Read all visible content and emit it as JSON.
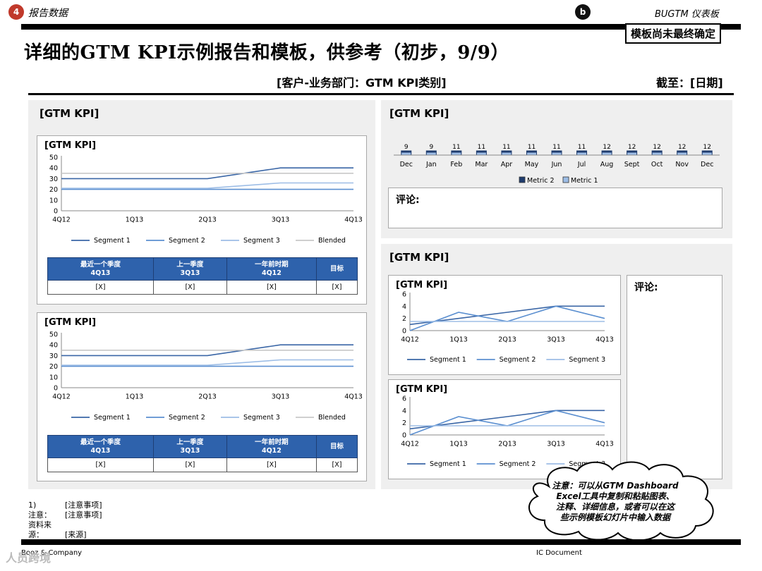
{
  "header": {
    "section_number": "4",
    "section_name": "报告数据",
    "b_badge": "b",
    "dashboard_name": "BUGTM 仪表板",
    "stamp": "模板尚未最终确定",
    "title": "详细的GTM KPI示例报告和模板，供参考（初步，9/9）",
    "subheading": "[客户-业务部门：GTM KPI类别]",
    "as_of": "截至：[日期]"
  },
  "left_panel": {
    "title": "[GTM KPI]",
    "cards": [
      {
        "title": "[GTM KPI]",
        "table_headers": [
          {
            "label": "最近一个季度",
            "sub": "4Q13"
          },
          {
            "label": "上一季度",
            "sub": "3Q13"
          },
          {
            "label": "一年前时期",
            "sub": "4Q12"
          },
          {
            "label": "目标",
            "sub": ""
          }
        ],
        "table_values": [
          "[X]",
          "[X]",
          "[X]",
          "[X]"
        ]
      },
      {
        "title": "[GTM KPI]",
        "table_headers": [
          {
            "label": "最近一个季度",
            "sub": "4Q13"
          },
          {
            "label": "上一季度",
            "sub": "3Q13"
          },
          {
            "label": "一年前时期",
            "sub": "4Q12"
          },
          {
            "label": "目标",
            "sub": ""
          }
        ],
        "table_values": [
          "[X]",
          "[X]",
          "[X]",
          "[X]"
        ]
      }
    ]
  },
  "right_top_panel": {
    "title": "[GTM KPI]",
    "comment_label": "评论:"
  },
  "right_bottom_panel": {
    "title": "[GTM KPI]",
    "card_titles": [
      "[GTM KPI]",
      "[GTM KPI]"
    ],
    "comment_label": "评论:"
  },
  "callout": {
    "lines": [
      "注意：可以从GTM Dashboard",
      "Excel工具中复制和粘贴图表、",
      "注释、详细信息，或者可以在这",
      "些示例模板幻灯片中输入数据"
    ]
  },
  "footnotes": [
    {
      "key": "1)",
      "value": "[注意事项]"
    },
    {
      "key": "注意：",
      "value": "[注意事项]"
    },
    {
      "key": "资料来源：",
      "value": "[来源]"
    }
  ],
  "footer": {
    "firm": "Booz & Company",
    "doc": "IC Document",
    "watermark": "人员跨境"
  },
  "chart_data": [
    {
      "type": "line",
      "title": "[GTM KPI]",
      "categories": [
        "4Q12",
        "1Q13",
        "2Q13",
        "3Q13",
        "4Q13"
      ],
      "ylim": [
        0,
        50
      ],
      "yticks": [
        0,
        10,
        20,
        30,
        40,
        50
      ],
      "series": [
        {
          "name": "Segment 1",
          "color": "#3a66a6",
          "values": [
            30,
            30,
            30,
            40,
            40
          ]
        },
        {
          "name": "Segment 2",
          "color": "#5b8fd0",
          "values": [
            20,
            20,
            20,
            20,
            20
          ]
        },
        {
          "name": "Segment 3",
          "color": "#9dbde6",
          "values": [
            21,
            21,
            21,
            26,
            26
          ]
        },
        {
          "name": "Blended",
          "color": "#c8c8c8",
          "values": [
            35,
            35,
            35,
            35,
            35
          ]
        }
      ],
      "legend": "bottom",
      "grid": false
    },
    {
      "type": "line",
      "title": "[GTM KPI]",
      "categories": [
        "4Q12",
        "1Q13",
        "2Q13",
        "3Q13",
        "4Q13"
      ],
      "ylim": [
        0,
        50
      ],
      "yticks": [
        0,
        10,
        20,
        30,
        40,
        50
      ],
      "series": [
        {
          "name": "Segment 1",
          "color": "#3a66a6",
          "values": [
            30,
            30,
            30,
            40,
            40
          ]
        },
        {
          "name": "Segment 2",
          "color": "#5b8fd0",
          "values": [
            20,
            20,
            20,
            20,
            20
          ]
        },
        {
          "name": "Segment 3",
          "color": "#9dbde6",
          "values": [
            21,
            21,
            21,
            26,
            26
          ]
        },
        {
          "name": "Blended",
          "color": "#c8c8c8",
          "values": [
            35,
            35,
            35,
            35,
            35
          ]
        }
      ],
      "legend": "bottom",
      "grid": false
    },
    {
      "type": "bar",
      "title": "[GTM KPI]",
      "categories": [
        "Dec",
        "Jan",
        "Feb",
        "Mar",
        "Apr",
        "May",
        "Jun",
        "Jul",
        "Aug",
        "Sept",
        "Oct",
        "Nov",
        "Dec"
      ],
      "series": [
        {
          "name": "Metric 2",
          "color": "#1f3c6e",
          "values": [
            9,
            9,
            11,
            11,
            11,
            11,
            11,
            11,
            12,
            12,
            12,
            12,
            12
          ]
        },
        {
          "name": "Metric 1",
          "color": "#9dbde6",
          "values": [
            9,
            9,
            11,
            11,
            11,
            11,
            11,
            11,
            12,
            12,
            12,
            12,
            12
          ]
        }
      ],
      "data_labels": [
        9,
        9,
        11,
        11,
        11,
        11,
        11,
        11,
        12,
        12,
        12,
        12,
        12
      ],
      "legend": "bottom",
      "grid": false
    },
    {
      "type": "line",
      "title": "[GTM KPI]",
      "categories": [
        "4Q12",
        "1Q13",
        "2Q13",
        "3Q13",
        "4Q13"
      ],
      "ylim": [
        0,
        6
      ],
      "yticks": [
        0,
        2,
        4,
        6
      ],
      "series": [
        {
          "name": "Segment 1",
          "color": "#3a66a6",
          "values": [
            1,
            2,
            3,
            4,
            4
          ]
        },
        {
          "name": "Segment 2",
          "color": "#5b8fd0",
          "values": [
            0,
            3,
            1.5,
            4,
            2
          ]
        },
        {
          "name": "Segment 3",
          "color": "#9dbde6",
          "values": [
            1.5,
            1.5,
            1.5,
            1.5,
            1.5
          ]
        }
      ],
      "legend": "bottom",
      "grid": false
    },
    {
      "type": "line",
      "title": "[GTM KPI]",
      "categories": [
        "4Q12",
        "1Q13",
        "2Q13",
        "3Q13",
        "4Q13"
      ],
      "ylim": [
        0,
        6
      ],
      "yticks": [
        0,
        2,
        4,
        6
      ],
      "series": [
        {
          "name": "Segment 1",
          "color": "#3a66a6",
          "values": [
            1,
            2,
            3,
            4,
            4
          ]
        },
        {
          "name": "Segment 2",
          "color": "#5b8fd0",
          "values": [
            0,
            3,
            1.5,
            4,
            2
          ]
        },
        {
          "name": "Segment 3",
          "color": "#9dbde6",
          "values": [
            1.5,
            1.5,
            1.5,
            1.5,
            1.5
          ]
        }
      ],
      "legend": "bottom",
      "grid": false
    }
  ]
}
